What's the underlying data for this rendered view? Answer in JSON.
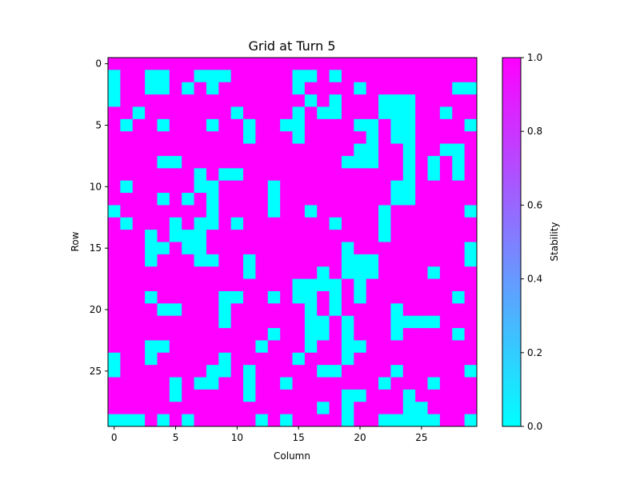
{
  "chart_data": {
    "type": "heatmap",
    "title": "Grid at Turn 5",
    "xlabel": "Column",
    "ylabel": "Row",
    "xlim": [
      -0.5,
      29.5
    ],
    "ylim": [
      29.5,
      -0.5
    ],
    "x_ticks": [
      0,
      5,
      10,
      15,
      20,
      25
    ],
    "y_ticks": [
      0,
      5,
      10,
      15,
      20,
      25
    ],
    "colorbar": {
      "label": "Stability",
      "min": 0.0,
      "max": 1.0,
      "ticks": [
        "0.0",
        "0.2",
        "0.4",
        "0.6",
        "0.8",
        "1.0"
      ],
      "colormap": "cool",
      "low_color": "#00ffff",
      "high_color": "#ff00ff"
    },
    "grid": false,
    "rows": 30,
    "cols": 30,
    "values": [
      [
        1,
        1,
        1,
        1,
        1,
        1,
        1,
        1,
        1,
        1,
        1,
        1,
        1,
        1,
        1,
        1,
        1,
        1,
        1,
        1,
        1,
        1,
        1,
        1,
        1,
        1,
        1,
        1,
        1,
        1
      ],
      [
        0,
        1,
        1,
        0,
        0,
        1,
        1,
        0,
        0,
        0,
        1,
        1,
        1,
        1,
        1,
        0,
        0,
        1,
        0,
        1,
        1,
        1,
        1,
        1,
        1,
        1,
        1,
        1,
        1,
        1
      ],
      [
        0,
        1,
        1,
        0,
        0,
        1,
        0,
        1,
        0,
        1,
        1,
        1,
        1,
        1,
        1,
        0,
        1,
        1,
        1,
        1,
        0,
        1,
        1,
        1,
        1,
        1,
        1,
        1,
        0,
        0
      ],
      [
        0,
        1,
        1,
        1,
        1,
        1,
        1,
        1,
        1,
        1,
        1,
        1,
        1,
        1,
        1,
        1,
        0,
        1,
        0,
        1,
        1,
        1,
        0,
        0,
        0,
        1,
        1,
        1,
        1,
        1
      ],
      [
        1,
        1,
        0,
        1,
        1,
        1,
        1,
        1,
        1,
        1,
        0,
        1,
        1,
        1,
        1,
        0,
        1,
        0,
        0,
        1,
        1,
        1,
        0,
        0,
        0,
        1,
        1,
        0,
        1,
        1
      ],
      [
        1,
        0,
        1,
        1,
        0,
        1,
        1,
        1,
        0,
        1,
        1,
        0,
        1,
        1,
        0,
        0,
        1,
        1,
        1,
        1,
        0,
        0,
        1,
        0,
        0,
        1,
        1,
        1,
        1,
        0
      ],
      [
        1,
        1,
        1,
        1,
        1,
        1,
        1,
        1,
        1,
        1,
        1,
        0,
        1,
        1,
        1,
        0,
        1,
        1,
        1,
        1,
        1,
        0,
        1,
        0,
        0,
        1,
        1,
        1,
        1,
        1
      ],
      [
        1,
        1,
        1,
        1,
        1,
        1,
        1,
        1,
        1,
        1,
        1,
        1,
        1,
        1,
        1,
        1,
        1,
        1,
        1,
        1,
        0,
        0,
        1,
        1,
        0,
        1,
        1,
        0,
        0,
        1
      ],
      [
        1,
        1,
        1,
        1,
        0,
        0,
        1,
        1,
        1,
        1,
        1,
        1,
        1,
        1,
        1,
        1,
        1,
        1,
        1,
        0,
        0,
        0,
        1,
        1,
        0,
        1,
        0,
        1,
        0,
        1
      ],
      [
        1,
        1,
        1,
        1,
        1,
        1,
        1,
        0,
        1,
        0,
        0,
        1,
        1,
        1,
        1,
        1,
        1,
        1,
        1,
        1,
        1,
        1,
        1,
        1,
        0,
        1,
        0,
        1,
        0,
        1
      ],
      [
        1,
        0,
        1,
        1,
        1,
        1,
        1,
        0,
        0,
        1,
        1,
        1,
        1,
        0,
        1,
        1,
        1,
        1,
        1,
        1,
        1,
        1,
        1,
        0,
        0,
        1,
        1,
        1,
        1,
        1
      ],
      [
        1,
        1,
        1,
        1,
        0,
        1,
        0,
        1,
        0,
        1,
        1,
        1,
        1,
        0,
        1,
        1,
        1,
        1,
        1,
        1,
        1,
        1,
        1,
        0,
        0,
        1,
        1,
        1,
        1,
        1
      ],
      [
        0,
        1,
        1,
        1,
        1,
        1,
        1,
        1,
        0,
        1,
        1,
        1,
        1,
        0,
        1,
        1,
        0,
        1,
        1,
        1,
        1,
        1,
        0,
        1,
        1,
        1,
        1,
        1,
        1,
        0
      ],
      [
        1,
        0,
        1,
        1,
        1,
        0,
        1,
        0,
        0,
        1,
        0,
        1,
        1,
        1,
        1,
        1,
        1,
        1,
        0,
        1,
        1,
        1,
        0,
        1,
        1,
        1,
        1,
        1,
        1,
        1
      ],
      [
        1,
        1,
        1,
        0,
        1,
        0,
        0,
        0,
        1,
        1,
        1,
        1,
        1,
        1,
        1,
        1,
        1,
        1,
        1,
        1,
        1,
        1,
        0,
        1,
        1,
        1,
        1,
        1,
        1,
        1
      ],
      [
        1,
        1,
        1,
        0,
        0,
        1,
        0,
        0,
        1,
        1,
        1,
        1,
        1,
        1,
        1,
        1,
        1,
        1,
        1,
        0,
        1,
        1,
        1,
        1,
        1,
        1,
        1,
        1,
        1,
        0
      ],
      [
        1,
        1,
        1,
        0,
        1,
        1,
        1,
        0,
        0,
        1,
        1,
        0,
        1,
        1,
        1,
        1,
        1,
        1,
        1,
        0,
        0,
        0,
        1,
        1,
        1,
        1,
        1,
        1,
        1,
        0
      ],
      [
        1,
        1,
        1,
        1,
        1,
        1,
        1,
        1,
        1,
        1,
        1,
        0,
        1,
        1,
        1,
        1,
        1,
        0,
        1,
        0,
        0,
        0,
        1,
        1,
        1,
        1,
        0,
        1,
        1,
        1
      ],
      [
        1,
        1,
        1,
        1,
        1,
        1,
        1,
        1,
        1,
        1,
        1,
        1,
        1,
        1,
        1,
        0,
        0,
        0,
        0,
        1,
        0,
        1,
        1,
        1,
        1,
        1,
        1,
        1,
        1,
        1
      ],
      [
        1,
        1,
        1,
        0,
        1,
        1,
        1,
        1,
        1,
        0,
        0,
        1,
        1,
        0,
        1,
        0,
        0,
        1,
        0,
        1,
        0,
        1,
        1,
        1,
        1,
        1,
        1,
        1,
        0,
        1
      ],
      [
        1,
        1,
        1,
        1,
        0,
        0,
        1,
        1,
        1,
        0,
        1,
        1,
        1,
        1,
        1,
        1,
        0,
        1,
        0,
        1,
        1,
        1,
        1,
        0,
        1,
        1,
        1,
        1,
        1,
        1
      ],
      [
        1,
        1,
        1,
        1,
        1,
        1,
        1,
        1,
        1,
        0,
        1,
        1,
        1,
        1,
        1,
        1,
        0,
        0,
        1,
        0,
        1,
        1,
        1,
        0,
        0,
        0,
        0,
        1,
        1,
        1
      ],
      [
        1,
        1,
        1,
        1,
        1,
        1,
        1,
        1,
        1,
        1,
        1,
        1,
        1,
        0,
        1,
        1,
        0,
        0,
        1,
        0,
        1,
        1,
        1,
        0,
        1,
        1,
        1,
        1,
        0,
        1
      ],
      [
        1,
        1,
        1,
        0,
        0,
        1,
        1,
        1,
        1,
        1,
        1,
        1,
        0,
        1,
        1,
        1,
        0,
        1,
        1,
        0,
        0,
        1,
        1,
        1,
        1,
        1,
        1,
        1,
        1,
        1
      ],
      [
        0,
        1,
        1,
        0,
        1,
        1,
        1,
        1,
        1,
        0,
        1,
        1,
        1,
        1,
        1,
        0,
        1,
        1,
        1,
        0,
        1,
        1,
        1,
        1,
        1,
        1,
        1,
        1,
        1,
        1
      ],
      [
        0,
        1,
        1,
        1,
        1,
        1,
        1,
        1,
        0,
        0,
        1,
        0,
        1,
        1,
        1,
        1,
        1,
        0,
        0,
        1,
        1,
        1,
        1,
        0,
        1,
        1,
        1,
        1,
        1,
        0
      ],
      [
        1,
        1,
        1,
        1,
        1,
        0,
        1,
        0,
        0,
        1,
        1,
        0,
        1,
        1,
        0,
        1,
        1,
        1,
        1,
        1,
        1,
        1,
        0,
        1,
        1,
        1,
        0,
        1,
        1,
        1
      ],
      [
        1,
        1,
        1,
        1,
        1,
        0,
        1,
        1,
        1,
        1,
        1,
        0,
        1,
        1,
        1,
        1,
        1,
        1,
        1,
        0,
        0,
        1,
        1,
        1,
        0,
        1,
        1,
        1,
        1,
        1
      ],
      [
        1,
        1,
        1,
        1,
        1,
        1,
        1,
        1,
        1,
        1,
        1,
        1,
        1,
        1,
        1,
        1,
        1,
        0,
        1,
        0,
        1,
        1,
        1,
        1,
        0,
        0,
        1,
        1,
        1,
        1
      ],
      [
        0,
        0,
        0,
        1,
        0,
        1,
        0,
        1,
        1,
        1,
        1,
        1,
        0,
        1,
        0,
        1,
        1,
        1,
        1,
        0,
        1,
        1,
        0,
        0,
        0,
        0,
        0,
        1,
        1,
        0
      ]
    ]
  }
}
